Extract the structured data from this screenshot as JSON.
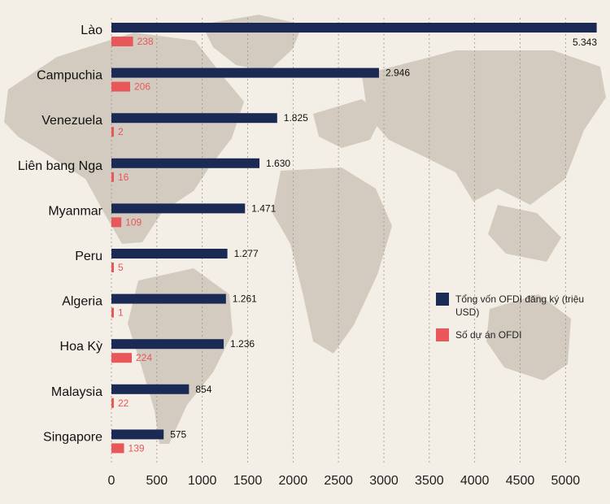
{
  "chart_data": {
    "type": "bar",
    "orientation": "horizontal",
    "categories": [
      "Lào",
      "Campuchia",
      "Venezuela",
      "Liên bang Nga",
      "Myanmar",
      "Peru",
      "Algeria",
      "Hoa Kỳ",
      "Malaysia",
      "Singapore"
    ],
    "series": [
      {
        "name": "Tổng vốn OFDI đăng ký (triệu USD)",
        "color": "#1b2a55",
        "values": [
          5343,
          2946,
          1825,
          1630,
          1471,
          1277,
          1261,
          1236,
          854,
          575
        ],
        "labels": [
          "5.343",
          "2.946",
          "1.825",
          "1.630",
          "1.471",
          "1.277",
          "1.261",
          "1.236",
          "854",
          "575"
        ]
      },
      {
        "name": "Số dự án OFDI",
        "color": "#e8575a",
        "values": [
          238,
          206,
          2,
          16,
          109,
          5,
          1,
          224,
          22,
          139
        ],
        "labels": [
          "238",
          "206",
          "2",
          "16",
          "109",
          "5",
          "1",
          "224",
          "22",
          "139"
        ]
      }
    ],
    "xlim": [
      0,
      5400
    ],
    "xticks": [
      0,
      500,
      1000,
      1500,
      2000,
      2500,
      3000,
      3500,
      4000,
      4500,
      5000
    ],
    "grid": "vertical dashed",
    "legend_position": "right-middle",
    "background": "world map"
  }
}
